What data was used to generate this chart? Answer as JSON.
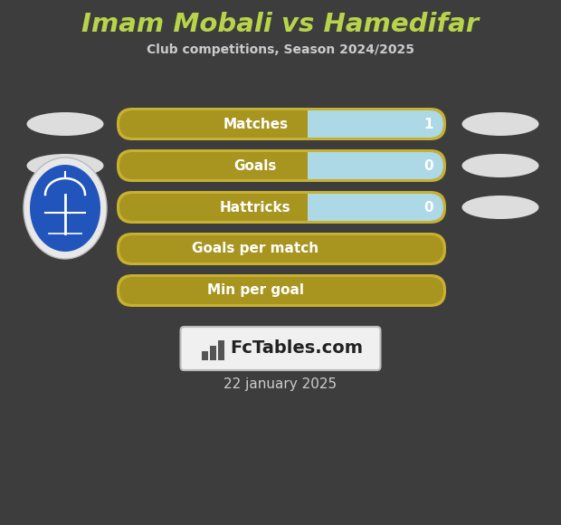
{
  "title": "Imam Mobali vs Hamedifar",
  "subtitle": "Club competitions, Season 2024/2025",
  "date": "22 january 2025",
  "background_color": "#3d3d3d",
  "title_color": "#b8d44a",
  "subtitle_color": "#cccccc",
  "date_color": "#cccccc",
  "rows": [
    {
      "label": "Matches",
      "right_val": "1",
      "has_value": true
    },
    {
      "label": "Goals",
      "right_val": "0",
      "has_value": true
    },
    {
      "label": "Hattricks",
      "right_val": "0",
      "has_value": true
    },
    {
      "label": "Goals per match",
      "right_val": null,
      "has_value": false
    },
    {
      "label": "Min per goal",
      "right_val": null,
      "has_value": false
    }
  ],
  "bar_left_color": "#a89520",
  "bar_right_color": "#add8e6",
  "bar_border_color": "#c8b030",
  "left_oval_color": "#dddddd",
  "right_oval_color": "#dddddd",
  "logo_outer_color": "#e8e8e8",
  "logo_inner_color": "#2255bb",
  "watermark_bg": "#f0f0f0",
  "watermark_border": "#bbbbbb",
  "watermark_text": "FcTables.com",
  "watermark_color": "#222222",
  "watermark_icon_color": "#555555"
}
